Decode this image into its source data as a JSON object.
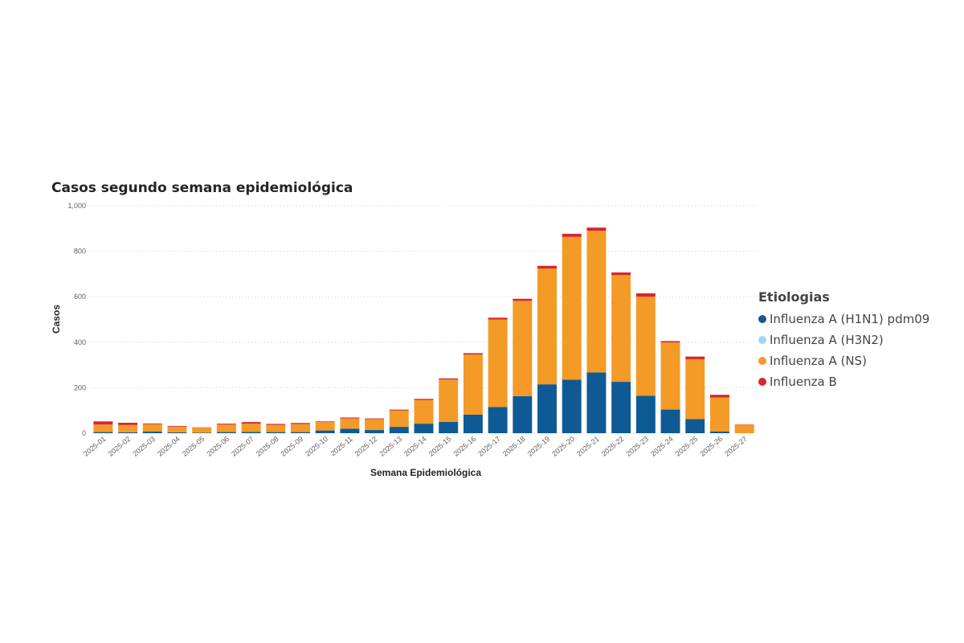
{
  "chart_data": {
    "type": "bar",
    "stacked": true,
    "title": "Casos segundo semana epidemiológica",
    "xlabel": "Semana Epidemiológica",
    "ylabel": "Casos",
    "ylim": [
      0,
      1000
    ],
    "yticks": [
      0,
      200,
      400,
      600,
      800,
      1000
    ],
    "ytick_labels": [
      "0",
      "200",
      "400",
      "600",
      "800",
      "1,000"
    ],
    "grid": true,
    "legend_title": "Etiologias",
    "legend_position": "right",
    "categories": [
      "2025-01",
      "2025-02",
      "2025-03",
      "2025-04",
      "2025-05",
      "2025-06",
      "2025-07",
      "2025-08",
      "2025-09",
      "2025-10",
      "2025-11",
      "2025-12",
      "2025-13",
      "2025-14",
      "2025-15",
      "2025-16",
      "2025-17",
      "2025-18",
      "2025-19",
      "2025-20",
      "2025-21",
      "2025-22",
      "2025-23",
      "2025-24",
      "2025-25",
      "2025-26",
      "2025-27"
    ],
    "series": [
      {
        "name": "Influenza A (H1N1) pdm09",
        "color": "#0f5a94",
        "values": [
          5,
          4,
          8,
          4,
          2,
          5,
          6,
          5,
          5,
          12,
          20,
          14,
          28,
          42,
          50,
          82,
          115,
          163,
          215,
          235,
          267,
          226,
          165,
          104,
          62,
          8,
          0
        ]
      },
      {
        "name": "Influenza A (H3N2)",
        "color": "#9fd6f2",
        "values": [
          0,
          0,
          0,
          0,
          0,
          0,
          0,
          0,
          0,
          0,
          0,
          0,
          0,
          0,
          0,
          0,
          0,
          0,
          0,
          0,
          0,
          0,
          0,
          0,
          0,
          0,
          0
        ]
      },
      {
        "name": "Influenza A (NS)",
        "color": "#f39a27",
        "values": [
          33,
          32,
          32,
          25,
          23,
          33,
          36,
          32,
          35,
          37,
          45,
          48,
          72,
          104,
          186,
          264,
          385,
          419,
          509,
          628,
          623,
          469,
          435,
          295,
          263,
          149,
          38
        ]
      },
      {
        "name": "Influenza B",
        "color": "#d8262e",
        "values": [
          14,
          10,
          3,
          3,
          1,
          4,
          7,
          4,
          5,
          3,
          4,
          3,
          4,
          5,
          5,
          6,
          8,
          9,
          12,
          14,
          14,
          12,
          15,
          6,
          12,
          12,
          1
        ]
      }
    ]
  }
}
